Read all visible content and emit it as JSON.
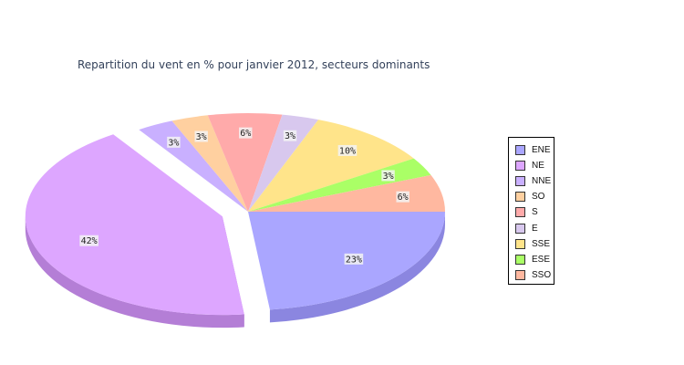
{
  "chart_data": {
    "type": "pie",
    "title": "Repartition du vent en % pour janvier 2012, secteurs dominants",
    "slices": [
      {
        "name": "ENE",
        "value": 23,
        "label": "23%",
        "color": "#aaa6ff",
        "side": "#8b86e0"
      },
      {
        "name": "NE",
        "value": 42,
        "label": "42%",
        "color": "#dda6ff",
        "side": "#b47ed6"
      },
      {
        "name": "NNE",
        "value": 3,
        "label": "3%",
        "color": "#c9b0ff",
        "side": "#a28ad6"
      },
      {
        "name": "SO",
        "value": 3,
        "label": "3%",
        "color": "#ffd0a0",
        "side": "#e0ae80"
      },
      {
        "name": "S",
        "value": 6,
        "label": "6%",
        "color": "#ffaaaa",
        "side": "#e08a8a"
      },
      {
        "name": "E",
        "value": 3,
        "label": "3%",
        "color": "#d8c8ee",
        "side": "#b6a6cc"
      },
      {
        "name": "SSE",
        "value": 10,
        "label": "10%",
        "color": "#ffe48a",
        "side": "#e0c46a"
      },
      {
        "name": "ESE",
        "value": 3,
        "label": "3%",
        "color": "#aaff66",
        "side": "#8ad846"
      },
      {
        "name": "SSO",
        "value": 6,
        "label": "6%",
        "color": "#ffb8a0",
        "side": "#e09880"
      }
    ],
    "exploded": "NE",
    "legend_position": "right"
  }
}
